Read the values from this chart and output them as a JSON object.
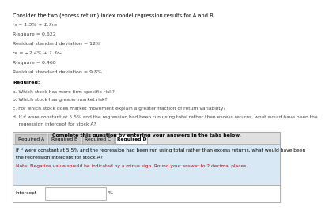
{
  "title_text": "Consider the two (excess return) index model regression results for A and B",
  "eq_a": "rₐ = 1.5% + 1.7rₘ",
  "rsq_a": "R-square = 0.622",
  "resid_a": "Residual standard deviation = 12%",
  "eq_b": "rᴃ = −2.4% + 1.3rₘ",
  "rsq_b": "R-square = 0.468",
  "resid_b": "Residual standard deviation = 9.8%",
  "required_label": "Required:",
  "req_a": "a. Which stock has more firm-specific risk?",
  "req_b": "b. Which stock has greater market risk?",
  "req_c": "c. For which stock does market movement explain a greater fraction of return variability?",
  "req_d_line1": "d. If rⁱ were constant at 5.5% and the regression had been run using total rather than excess returns, what would have been the",
  "req_d_line2": "    regression intercept for stock A?",
  "box_header": "Complete this question by entering your answers in the tabs below.",
  "tab_a": "Required A",
  "tab_b": "Required B",
  "tab_c": "Required C",
  "tab_d": "Required D",
  "body_line1": "If rⁱ were constant at 5.5% and the regression had been run using total rather than excess returns, what would have been",
  "body_line2": "the regression intercept for stock A?",
  "note_line": "Note: Negative value should be indicated by a minus sign. Round your answer to 2 decimal places.",
  "field_label": "Intercept",
  "field_unit": "%",
  "bg_color": "#ffffff",
  "box_bg": "#e0e0e0",
  "tab_active_bg": "#ffffff",
  "tab_inactive_bg": "#c8c8c8",
  "body_bg": "#d8e8f4",
  "note_color": "#cc0000",
  "text_color": "#000000",
  "gray_text": "#444444",
  "border_color": "#aaaaaa"
}
